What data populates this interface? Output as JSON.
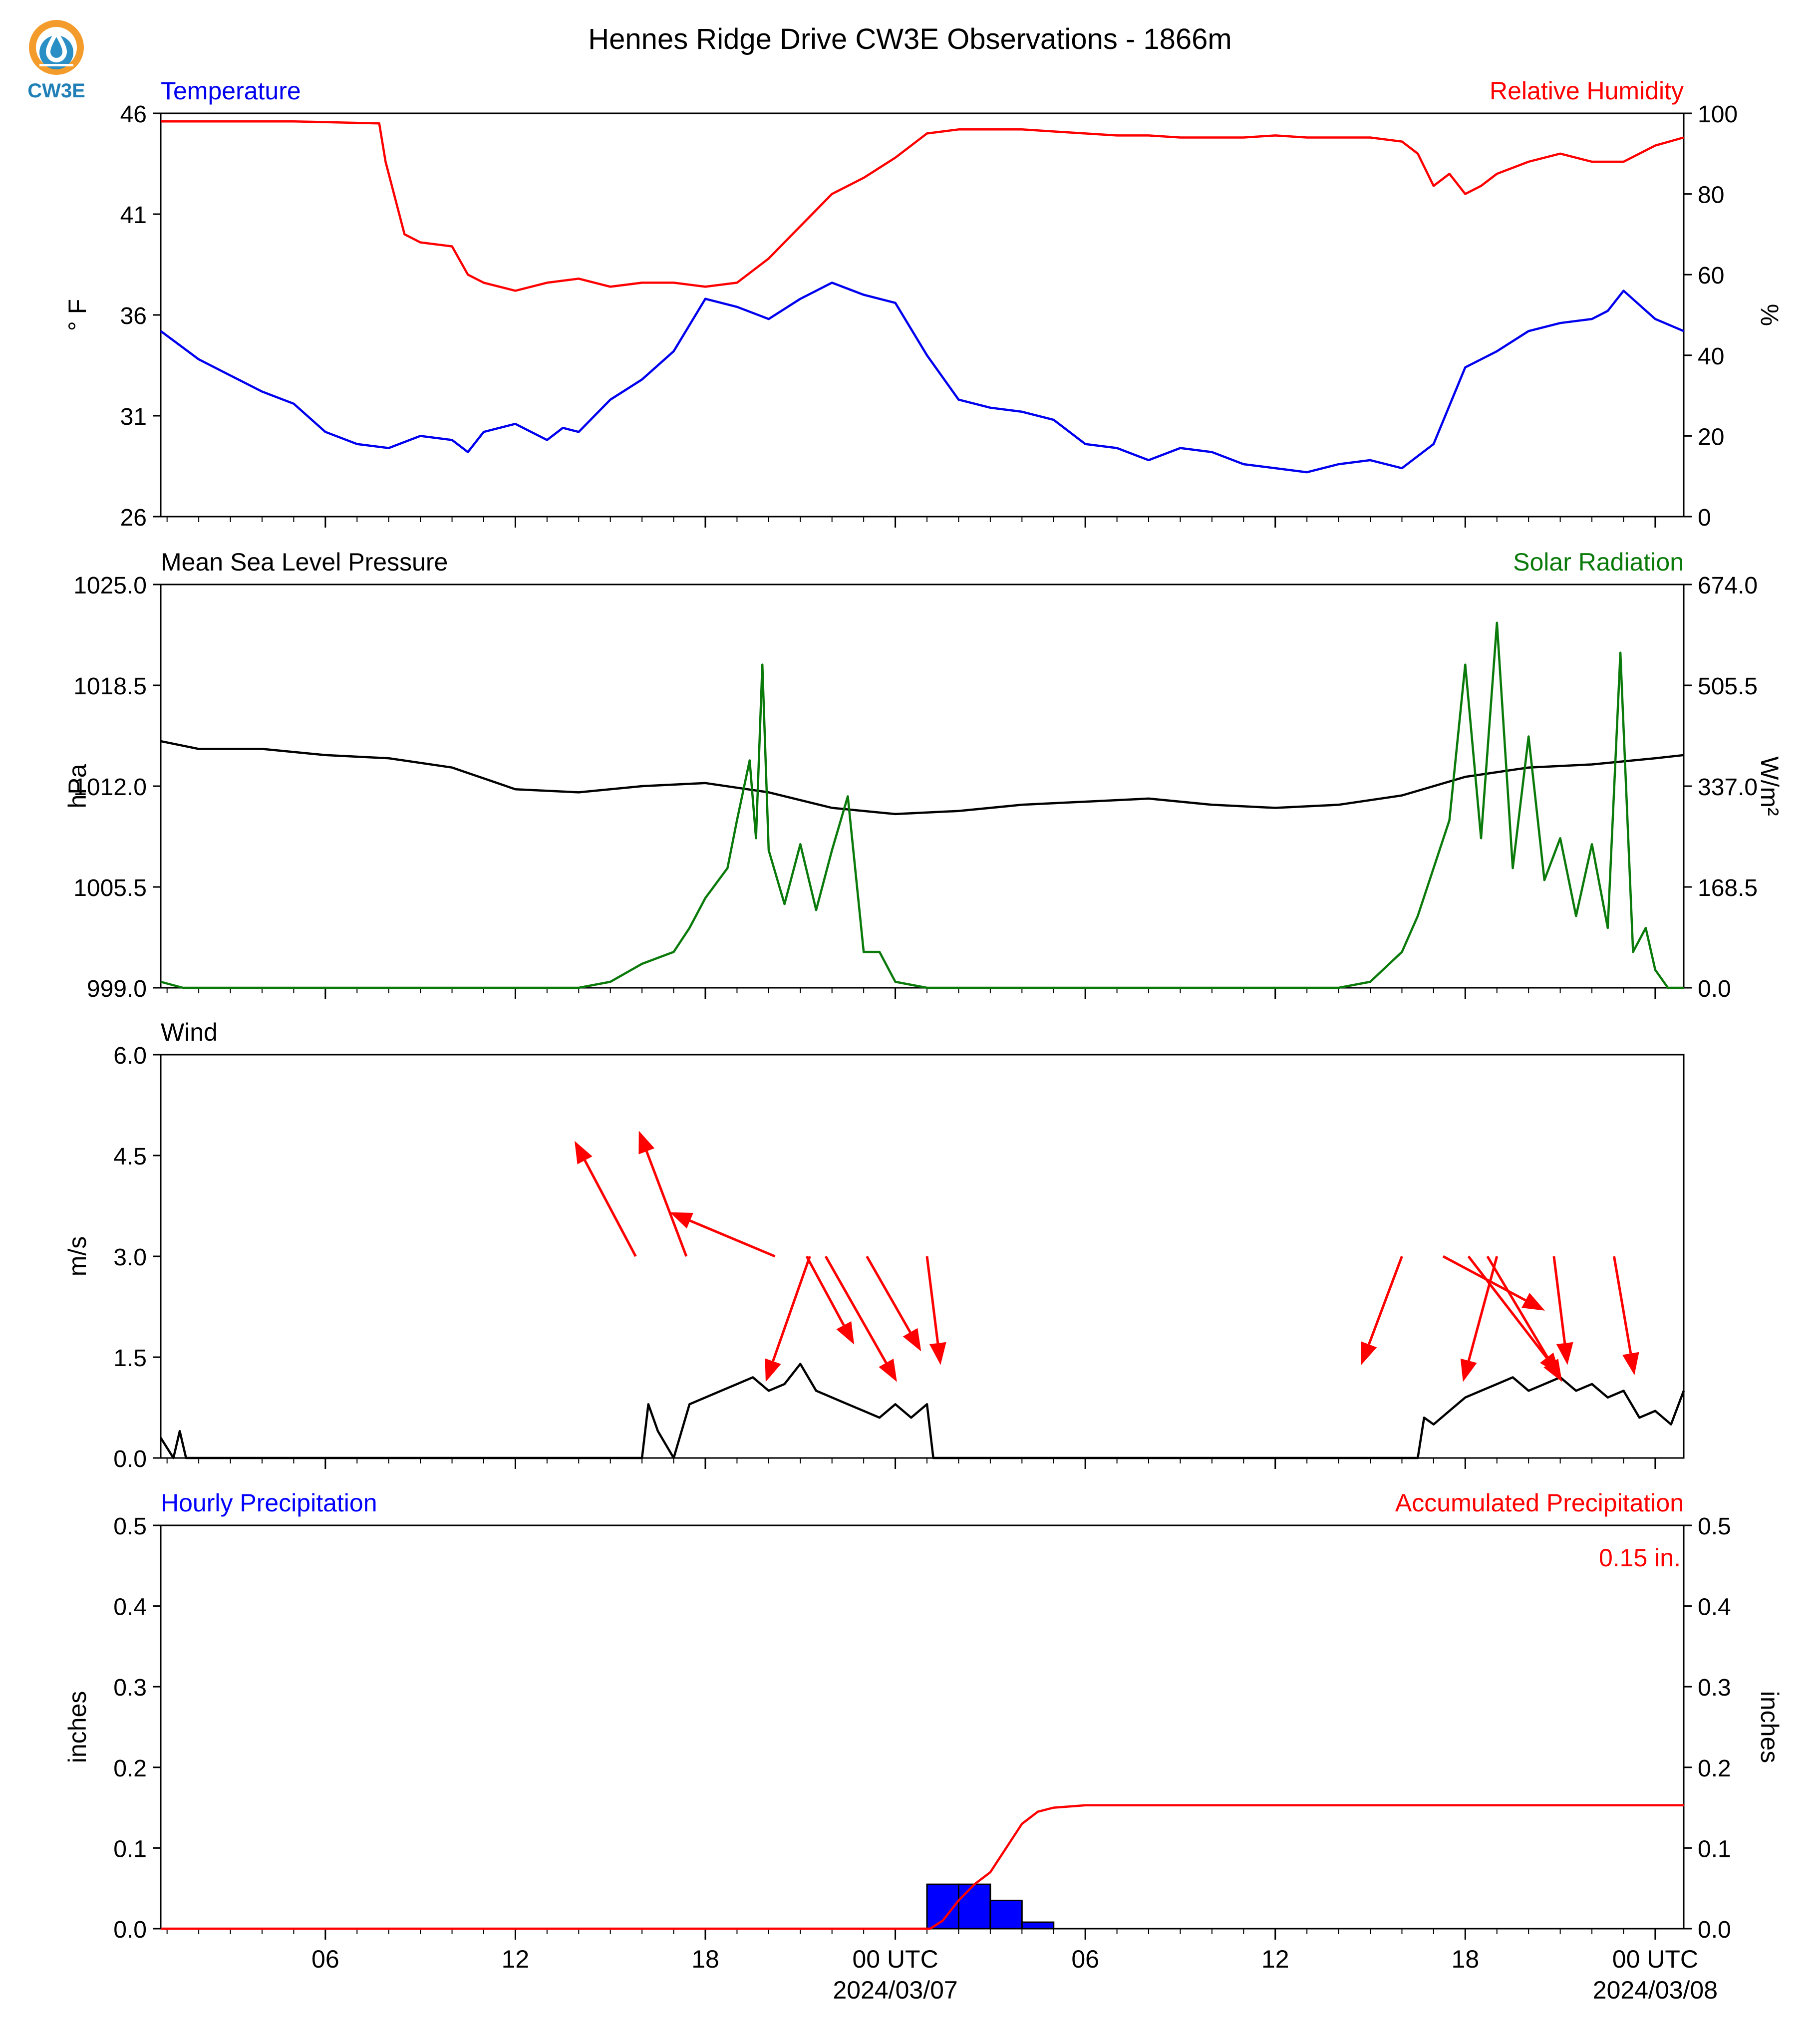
{
  "title": "Hennes Ridge Drive CW3E Observations - 1866m",
  "logo": {
    "text": "CW3E",
    "icon": "cw3e-drop-logo",
    "colors": {
      "ring": "#f39c2b",
      "drop": "#2a8fc4",
      "text": "#1f7fb6"
    }
  },
  "x_axis": {
    "ticks": [
      "06",
      "12",
      "18",
      "00 UTC",
      "06",
      "12",
      "18",
      "00 UTC"
    ],
    "tick_hours": [
      6,
      12,
      18,
      24,
      30,
      36,
      42,
      48
    ],
    "date_labels": [
      "2024/03/07",
      "2024/03/08"
    ],
    "date_label_hours": [
      24,
      48
    ],
    "range_hours": [
      0.8,
      48.9
    ]
  },
  "chart_data": [
    {
      "type": "line",
      "left_label": "Temperature",
      "right_label": "Relative Humidity",
      "ylabel": "° F",
      "y2label": "%",
      "ylim": [
        26,
        46
      ],
      "yticks": [
        "26",
        "31",
        "36",
        "41",
        "46"
      ],
      "y2lim": [
        0,
        100
      ],
      "y2ticks": [
        "0",
        "20",
        "40",
        "60",
        "80",
        "100"
      ],
      "series": [
        {
          "name": "Temperature",
          "color": "#0000ee",
          "axis": "left",
          "x": [
            0.8,
            2,
            3,
            4,
            5,
            6,
            7,
            8,
            9,
            10,
            10.5,
            11,
            12,
            13,
            13.5,
            14,
            15,
            16,
            17,
            18,
            19,
            20,
            21,
            22,
            23,
            24,
            25,
            26,
            27,
            28,
            29,
            30,
            31,
            32,
            33,
            34,
            35,
            36,
            37,
            38,
            39,
            40,
            41,
            42,
            43,
            44,
            45,
            46,
            46.5,
            47,
            48,
            48.9
          ],
          "y": [
            35.2,
            33.8,
            33,
            32.2,
            31.6,
            30.2,
            29.6,
            29.4,
            30,
            29.8,
            29.2,
            30.2,
            30.6,
            29.8,
            30.4,
            30.2,
            31.8,
            32.8,
            34.2,
            36.8,
            36.4,
            35.8,
            36.8,
            37.6,
            37,
            36.6,
            34,
            31.8,
            31.4,
            31.2,
            30.8,
            29.6,
            29.4,
            28.8,
            29.4,
            29.2,
            28.6,
            28.4,
            28.2,
            28.6,
            28.8,
            28.4,
            29.6,
            33.4,
            34.2,
            35.2,
            35.6,
            35.8,
            36.2,
            37.2,
            35.8,
            35.2
          ]
        },
        {
          "name": "Relative Humidity",
          "color": "#ff0000",
          "axis": "right",
          "x": [
            0.8,
            3,
            5,
            7.7,
            7.9,
            8.5,
            9,
            10,
            10.5,
            11,
            12,
            13,
            14,
            15,
            16,
            17,
            18,
            19,
            20,
            21,
            22,
            23,
            24,
            25,
            26,
            27,
            28,
            29,
            30,
            31,
            32,
            33,
            34,
            35,
            36,
            37,
            38,
            39,
            40,
            40.5,
            41,
            41.5,
            42,
            42.5,
            43,
            44,
            45,
            46,
            47,
            48,
            48.9
          ],
          "y": [
            98,
            98,
            98,
            97.5,
            88,
            70,
            68,
            67,
            60,
            58,
            56,
            58,
            59,
            57,
            58,
            58,
            57,
            58,
            64,
            72,
            80,
            84,
            89,
            95,
            96,
            96,
            96,
            95.5,
            95,
            94.5,
            94.5,
            94,
            94,
            94,
            94.5,
            94,
            94,
            94,
            93,
            90,
            82,
            85,
            80,
            82,
            85,
            88,
            90,
            88,
            88,
            92,
            94
          ]
        }
      ]
    },
    {
      "type": "line",
      "left_label": "Mean Sea Level Pressure",
      "right_label": "Solar Radiation",
      "ylabel": "hPa",
      "y2label": "W/m²",
      "ylim": [
        999.0,
        1025.0
      ],
      "yticks": [
        "999.0",
        "1005.5",
        "1012.0",
        "1018.5",
        "1025.0"
      ],
      "y2lim": [
        0.0,
        674.0
      ],
      "y2ticks": [
        "0.0",
        "168.5",
        "337.0",
        "505.5",
        "674.0"
      ],
      "series": [
        {
          "name": "Mean Sea Level Pressure",
          "color": "#000000",
          "axis": "left",
          "x": [
            0.8,
            2,
            4,
            6,
            8,
            10,
            12,
            14,
            16,
            18,
            20,
            22,
            24,
            26,
            28,
            30,
            32,
            34,
            36,
            38,
            40,
            42,
            44,
            46,
            48,
            48.9
          ],
          "y": [
            1014.9,
            1014.4,
            1014.4,
            1014.0,
            1013.8,
            1013.2,
            1011.8,
            1011.6,
            1012.0,
            1012.2,
            1011.6,
            1010.6,
            1010.2,
            1010.4,
            1010.8,
            1011.0,
            1011.2,
            1010.8,
            1010.6,
            1010.8,
            1011.4,
            1012.6,
            1013.2,
            1013.4,
            1013.8,
            1014.0
          ]
        },
        {
          "name": "Solar Radiation",
          "color": "#0a7a0a",
          "axis": "right",
          "x": [
            0.8,
            1.5,
            14,
            15,
            16,
            17,
            17.5,
            18,
            18.7,
            19,
            19.4,
            19.6,
            19.8,
            20,
            20.5,
            21,
            21.5,
            22,
            22.5,
            23,
            23.5,
            24,
            25,
            26,
            27,
            38,
            39,
            40,
            40.5,
            41,
            41.5,
            42,
            42.5,
            43,
            43.5,
            44,
            44.5,
            45,
            45.5,
            46,
            46.5,
            46.9,
            47.3,
            47.7,
            48,
            48.4,
            48.9
          ],
          "y": [
            10,
            0,
            0,
            10,
            40,
            60,
            100,
            150,
            200,
            280,
            380,
            250,
            540,
            230,
            140,
            240,
            130,
            230,
            320,
            60,
            60,
            10,
            0,
            0,
            0,
            0,
            10,
            60,
            120,
            200,
            280,
            540,
            250,
            610,
            200,
            420,
            180,
            250,
            120,
            240,
            100,
            560,
            60,
            100,
            30,
            0,
            0
          ]
        }
      ]
    },
    {
      "type": "line",
      "left_label": "Wind",
      "ylabel": "m/s",
      "ylim": [
        0.0,
        6.0
      ],
      "yticks": [
        "0.0",
        "1.5",
        "3.0",
        "4.5",
        "6.0"
      ],
      "series": [
        {
          "name": "Wind",
          "color": "#000000",
          "axis": "left",
          "x": [
            0.8,
            1.2,
            1.4,
            1.6,
            16,
            16.2,
            16.5,
            17,
            17.5,
            18,
            18.5,
            19,
            19.5,
            20,
            20.5,
            21,
            21.5,
            22,
            22.5,
            23,
            23.5,
            24,
            24.5,
            25,
            25.2,
            40.5,
            40.7,
            41,
            41.5,
            42,
            42.5,
            43,
            43.5,
            44,
            44.5,
            45,
            45.5,
            46,
            46.5,
            47,
            47.5,
            48,
            48.5,
            48.9
          ],
          "y": [
            0.3,
            0,
            0.4,
            0,
            0,
            0.8,
            0.4,
            0,
            0.8,
            0.9,
            1.0,
            1.1,
            1.2,
            1.0,
            1.1,
            1.4,
            1.0,
            0.9,
            0.8,
            0.7,
            0.6,
            0.8,
            0.6,
            0.8,
            0,
            0,
            0.6,
            0.5,
            0.7,
            0.9,
            1.0,
            1.1,
            1.2,
            1.0,
            1.1,
            1.2,
            1.0,
            1.1,
            0.9,
            1.0,
            0.6,
            0.7,
            0.5,
            1.0
          ]
        }
      ],
      "wind_arrows": {
        "color": "#ff0000",
        "x_hours": [
          15.8,
          17.4,
          20.2,
          21.2,
          21.3,
          21.8,
          23.1,
          25.0,
          40.0,
          41.3,
          42.1,
          42.7,
          43.0,
          44.8,
          46.7
        ],
        "u_ms": [
          -1.8,
          -1.4,
          -3.1,
          1.4,
          -1.3,
          2.1,
          1.6,
          0.4,
          -1.2,
          3.0,
          2.7,
          2.2,
          -1.0,
          0.4,
          0.6
        ],
        "v_ms": [
          3.4,
          3.7,
          1.3,
          -2.6,
          -3.7,
          -3.7,
          -2.8,
          -3.2,
          -3.2,
          -1.6,
          -3.5,
          -3.7,
          -3.7,
          -3.2,
          -3.5
        ]
      }
    },
    {
      "type": "bar",
      "left_label": "Hourly Precipitation",
      "right_label": "Accumulated Precipitation",
      "annotation": "0.15 in.",
      "ylabel": "inches",
      "y2label": "inches",
      "ylim": [
        0.0,
        0.5
      ],
      "yticks": [
        "0.0",
        "0.1",
        "0.2",
        "0.3",
        "0.4",
        "0.5"
      ],
      "y2lim": [
        0.0,
        0.5
      ],
      "y2ticks": [
        "0.0",
        "0.1",
        "0.2",
        "0.3",
        "0.4",
        "0.5"
      ],
      "bars": {
        "name": "Hourly Precipitation",
        "color": "#0000ff",
        "x_start_hours": [
          25,
          26,
          27,
          28
        ],
        "values": [
          0.055,
          0.055,
          0.035,
          0.008
        ]
      },
      "series": [
        {
          "name": "Accumulated Precipitation",
          "color": "#ff0000",
          "axis": "right",
          "x": [
            0.8,
            25.1,
            25.5,
            26,
            26.5,
            27,
            27.5,
            28,
            28.5,
            29,
            30,
            48.9
          ],
          "y": [
            0,
            0,
            0.01,
            0.035,
            0.055,
            0.07,
            0.1,
            0.13,
            0.145,
            0.15,
            0.153,
            0.153
          ]
        }
      ]
    }
  ]
}
